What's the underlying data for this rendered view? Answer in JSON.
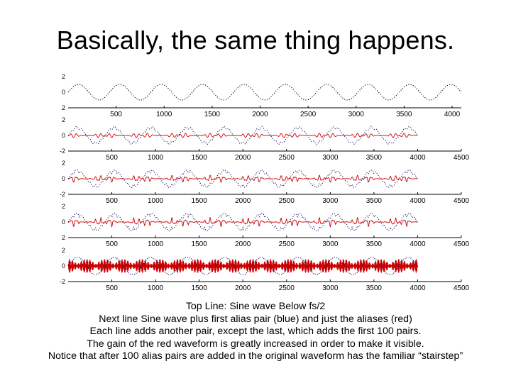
{
  "title": "Basically, the same thing happens.",
  "caption": [
    "Top Line:  Sine wave Below fs/2",
    "Next line Sine wave plus first alias pair (blue) and just the aliases (red)",
    "Each line adds another pair, except the last, which adds the first 100 pairs.",
    "The gain of the red waveform is greatly increased in order to make it visible.",
    "Notice that after 100 alias pairs are added in the original waveform has the familiar “stairstep”"
  ],
  "chart_data": [
    {
      "type": "line",
      "title": "",
      "xlim": [
        0,
        4096
      ],
      "ylim": [
        -2,
        2
      ],
      "x_ticks": [
        500,
        1000,
        1500,
        2000,
        2500,
        3000,
        3500,
        4000
      ],
      "y_ticks": [
        "2",
        "0",
        "2"
      ],
      "series": [
        {
          "color": "#000000",
          "style": "dotted",
          "description": "sine wave below fs/2, 9.5 cycles over 4096 samples",
          "signal": {
            "kind": "sine",
            "cycles": 9.5,
            "amplitude": 1.0
          }
        }
      ]
    },
    {
      "type": "line",
      "title": "",
      "xlim": [
        0,
        4500
      ],
      "ylim": [
        -2,
        2
      ],
      "x_ticks": [
        500,
        1000,
        1500,
        2000,
        2500,
        3000,
        3500,
        4000,
        4500
      ],
      "y_ticks": [
        "2",
        "0",
        "-2"
      ],
      "series": [
        {
          "color": "#1a1a6e",
          "style": "dotted",
          "description": "sine plus first alias pair",
          "signal": {
            "kind": "sine_plus_aliases",
            "cycles": 9.5,
            "pairs": 1
          }
        },
        {
          "color": "#cc0000",
          "style": "solid",
          "description": "aliases only",
          "signal": {
            "kind": "aliases",
            "pairs": 1,
            "gain": 0.45
          }
        }
      ]
    },
    {
      "type": "line",
      "title": "",
      "xlim": [
        0,
        4500
      ],
      "ylim": [
        -2,
        2
      ],
      "x_ticks": [
        500,
        1000,
        1500,
        2000,
        2500,
        3000,
        3500,
        4000,
        4500
      ],
      "y_ticks": [
        "2",
        "0",
        "-2"
      ],
      "series": [
        {
          "color": "#1a1a6e",
          "style": "dotted",
          "signal": {
            "kind": "sine_plus_aliases",
            "cycles": 9.5,
            "pairs": 2
          }
        },
        {
          "color": "#cc0000",
          "style": "solid",
          "signal": {
            "kind": "aliases",
            "pairs": 2,
            "gain": 0.5
          }
        }
      ]
    },
    {
      "type": "line",
      "title": "",
      "xlim": [
        0,
        4500
      ],
      "ylim": [
        -2,
        2
      ],
      "x_ticks": [
        500,
        1000,
        1500,
        2000,
        2500,
        3000,
        3500,
        4000,
        4500
      ],
      "y_ticks": [
        "2",
        "0",
        "2"
      ],
      "series": [
        {
          "color": "#1a1a6e",
          "style": "dotted",
          "signal": {
            "kind": "sine_plus_aliases",
            "cycles": 9.5,
            "pairs": 3
          }
        },
        {
          "color": "#cc0000",
          "style": "solid",
          "signal": {
            "kind": "aliases",
            "pairs": 3,
            "gain": 0.55
          }
        }
      ]
    },
    {
      "type": "line",
      "title": "",
      "xlim": [
        0,
        4500
      ],
      "ylim": [
        -2,
        2
      ],
      "x_ticks": [
        500,
        1000,
        1500,
        2000,
        2500,
        3000,
        3500,
        4000,
        4500
      ],
      "y_ticks": [
        "2",
        "0",
        "-2"
      ],
      "series": [
        {
          "color": "#1a1a6e",
          "style": "dotted",
          "description": "original waveform after 100 alias pairs (stairstep)",
          "signal": {
            "kind": "stairstep",
            "cycles": 9.5
          }
        },
        {
          "color": "#cc0000",
          "style": "solid",
          "description": "aliases of first 100 pairs, high gain",
          "signal": {
            "kind": "aliases_dense",
            "pairs": 100,
            "gain": 0.9
          }
        }
      ]
    }
  ],
  "colors": {
    "blue_series": "#1a1a6e",
    "red_series": "#cc0000",
    "axis": "#000000"
  }
}
